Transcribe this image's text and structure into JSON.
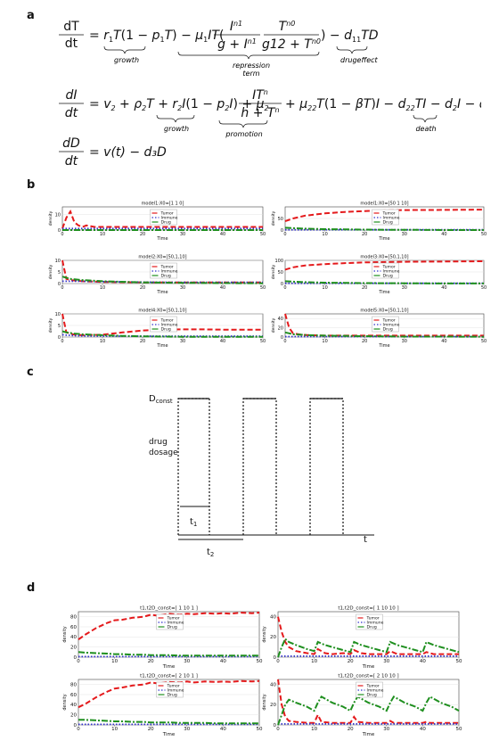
{
  "panels": {
    "a": "a",
    "b": "b",
    "c": "c",
    "d": "d"
  },
  "equations": {
    "eq1_lhs": "dT/dt",
    "eq1_parts": [
      "= r",
      "T(1 − p",
      "T) − μ",
      "IT(",
      "I",
      "g + I",
      "T",
      "g12 + T",
      ") − d",
      "TD"
    ],
    "eq1_labels": {
      "growth": "growth",
      "repression": "repression",
      "term": "term",
      "drugeffect": "drugeffect"
    },
    "eq2_lhs": "dI/dt",
    "eq2_labels": {
      "growth": "growth",
      "promotion": "promotion",
      "death": "death"
    },
    "eq3_lhs": "dD/dt",
    "eq3_rhs": "= v(t) − d₃D"
  },
  "legend": {
    "tumor": "Tumor",
    "immune": "Immune",
    "drug": "Drug"
  },
  "axis": {
    "xlabel": "Time",
    "ylabel": "density"
  },
  "colors": {
    "tumor": "#e41a1c",
    "immune": "#3333cc",
    "drug": "#1f8f1f"
  },
  "dosage": {
    "dconst": "D",
    "dconst_sub": "const",
    "ylabel1": "drug",
    "ylabel2": "dosage",
    "t1": "t",
    "t1_sub": "1",
    "t2": "t",
    "t2_sub": "2",
    "t": "t"
  },
  "chart_data": [
    {
      "type": "line",
      "title": "model1:X0=[1 1 0]",
      "xlim": [
        0,
        50
      ],
      "ylim": [
        0,
        15
      ],
      "yticks": [
        0,
        10
      ],
      "xticks": [
        0,
        10,
        20,
        30,
        40,
        50
      ],
      "x": [
        0,
        1,
        2,
        3,
        4,
        5,
        6,
        8,
        10,
        15,
        20,
        30,
        40,
        50
      ],
      "series": [
        {
          "name": "Tumor",
          "values": [
            1,
            8,
            12,
            5,
            3,
            2,
            3,
            2,
            2,
            2,
            2,
            2,
            2,
            2
          ]
        },
        {
          "name": "Immune",
          "values": [
            1,
            1,
            1,
            1,
            1,
            1,
            1,
            1,
            1,
            1,
            1,
            1,
            1,
            1
          ]
        },
        {
          "name": "Drug",
          "values": [
            0,
            0,
            0,
            0,
            0,
            0,
            0,
            0,
            0,
            0,
            0,
            0,
            0,
            0
          ]
        }
      ]
    },
    {
      "type": "line",
      "title": "model1:X0=[50 1 10]",
      "xlim": [
        0,
        50
      ],
      "ylim": [
        0,
        100
      ],
      "yticks": [
        0,
        50
      ],
      "xticks": [
        0,
        10,
        20,
        30,
        40,
        50
      ],
      "x": [
        0,
        2,
        5,
        10,
        15,
        20,
        25,
        30,
        40,
        50
      ],
      "series": [
        {
          "name": "Tumor",
          "values": [
            38,
            50,
            62,
            72,
            78,
            82,
            85,
            86,
            87,
            88
          ]
        },
        {
          "name": "Immune",
          "values": [
            1,
            1,
            1,
            1,
            1,
            1,
            1,
            1,
            1,
            1
          ]
        },
        {
          "name": "Drug",
          "values": [
            10,
            8,
            6,
            4,
            3,
            2,
            1,
            1,
            0,
            0
          ]
        }
      ]
    },
    {
      "type": "line",
      "title": "model2:X0=[50,1,10]",
      "xlim": [
        0,
        50
      ],
      "ylim": [
        0,
        10
      ],
      "yticks": [
        0,
        5,
        10
      ],
      "xticks": [
        0,
        10,
        20,
        30,
        40,
        50
      ],
      "x": [
        0,
        1,
        2,
        5,
        10,
        20,
        30,
        40,
        50
      ],
      "series": [
        {
          "name": "Tumor",
          "values": [
            10,
            2,
            1.5,
            1,
            0.7,
            0.5,
            0.5,
            0.5,
            0.5
          ]
        },
        {
          "name": "Immune",
          "values": [
            1,
            1,
            1,
            1,
            0.8,
            0.6,
            0.5,
            0.5,
            0.5
          ]
        },
        {
          "name": "Drug",
          "values": [
            3,
            2.5,
            2,
            1.5,
            1,
            0.5,
            0.3,
            0.2,
            0.1
          ]
        }
      ]
    },
    {
      "type": "line",
      "title": "model3:X0=[50,1,10]",
      "xlim": [
        0,
        50
      ],
      "ylim": [
        0,
        100
      ],
      "yticks": [
        0,
        50,
        100
      ],
      "xticks": [
        0,
        10,
        20,
        30,
        40,
        50
      ],
      "x": [
        0,
        2,
        5,
        10,
        15,
        20,
        30,
        40,
        50
      ],
      "series": [
        {
          "name": "Tumor",
          "values": [
            60,
            70,
            78,
            84,
            88,
            91,
            94,
            95,
            96
          ]
        },
        {
          "name": "Immune",
          "values": [
            1,
            1,
            1,
            1,
            1,
            1,
            1,
            1,
            1
          ]
        },
        {
          "name": "Drug",
          "values": [
            10,
            8,
            6,
            4,
            3,
            2,
            1,
            0.5,
            0.2
          ]
        }
      ]
    },
    {
      "type": "line",
      "title": "model4:X0=[50,1,10]",
      "xlim": [
        0,
        50
      ],
      "ylim": [
        0,
        10
      ],
      "yticks": [
        0,
        5,
        10
      ],
      "xticks": [
        0,
        10,
        20,
        30,
        40,
        50
      ],
      "x": [
        0,
        1,
        3,
        5,
        10,
        15,
        20,
        25,
        30,
        35,
        40,
        50
      ],
      "series": [
        {
          "name": "Tumor",
          "values": [
            10,
            2,
            1,
            0.8,
            1,
            2,
            2.8,
            3.2,
            3.3,
            3.3,
            3.2,
            3.2
          ]
        },
        {
          "name": "Immune",
          "values": [
            1,
            0.8,
            0.6,
            0.5,
            0.4,
            0.4,
            0.4,
            0.4,
            0.4,
            0.4,
            0.4,
            0.4
          ]
        },
        {
          "name": "Drug",
          "values": [
            2.5,
            2,
            1.5,
            1.2,
            0.8,
            0.5,
            0.3,
            0.2,
            0.1,
            0.1,
            0.1,
            0.1
          ]
        }
      ]
    },
    {
      "type": "line",
      "title": "model5:X0=[50,1,10]",
      "xlim": [
        0,
        50
      ],
      "ylim": [
        0,
        50
      ],
      "yticks": [
        0,
        20,
        40
      ],
      "xticks": [
        0,
        10,
        20,
        30,
        40,
        50
      ],
      "x": [
        0,
        1,
        2,
        4,
        6,
        10,
        20,
        30,
        40,
        50
      ],
      "series": [
        {
          "name": "Tumor",
          "values": [
            50,
            20,
            8,
            5,
            4,
            3,
            3,
            3,
            3,
            3
          ]
        },
        {
          "name": "Immune",
          "values": [
            1,
            1,
            1,
            1,
            1,
            1,
            1,
            1,
            1,
            1
          ]
        },
        {
          "name": "Drug",
          "values": [
            10,
            8,
            6,
            5,
            4,
            3,
            2,
            1,
            1,
            0.5
          ]
        }
      ]
    },
    {
      "type": "line",
      "title": "t1,t2D_const=[ 1 10 1 ]",
      "xlim": [
        0,
        50
      ],
      "ylim": [
        0,
        90
      ],
      "yticks": [
        0,
        20,
        40,
        60,
        80
      ],
      "xticks": [
        0,
        10,
        20,
        30,
        40,
        50
      ],
      "x": [
        0,
        2,
        5,
        8,
        10,
        12,
        15,
        18,
        20,
        22,
        25,
        28,
        30,
        32,
        35,
        38,
        40,
        42,
        45,
        48,
        50
      ],
      "series": [
        {
          "name": "Tumor",
          "values": [
            35,
            45,
            58,
            68,
            73,
            74,
            78,
            80,
            84,
            82,
            86,
            84,
            86,
            85,
            87,
            86,
            87,
            86,
            88,
            87,
            88
          ]
        },
        {
          "name": "Immune",
          "values": [
            1,
            1,
            1,
            1,
            1,
            1,
            1,
            1,
            1,
            1,
            1,
            1,
            1,
            1,
            1,
            1,
            1,
            1,
            1,
            1,
            1
          ]
        },
        {
          "name": "Drug",
          "values": [
            10,
            9,
            8,
            7,
            6,
            6,
            5,
            5,
            4,
            4,
            4,
            3,
            3,
            3,
            3,
            3,
            3,
            3,
            3,
            3,
            3
          ]
        }
      ]
    },
    {
      "type": "line",
      "title": "t1,t2D_const=[ 1 10 10 ]",
      "xlim": [
        0,
        50
      ],
      "ylim": [
        0,
        45
      ],
      "yticks": [
        0,
        20,
        40
      ],
      "xticks": [
        0,
        10,
        20,
        30,
        40,
        50
      ],
      "x": [
        0,
        1,
        2,
        3,
        5,
        8,
        10,
        11,
        13,
        15,
        18,
        20,
        21,
        23,
        25,
        28,
        30,
        31,
        33,
        35,
        38,
        40,
        41,
        43,
        45,
        48,
        50
      ],
      "series": [
        {
          "name": "Tumor",
          "values": [
            40,
            25,
            15,
            10,
            6,
            4,
            3,
            8,
            4,
            3,
            4,
            3,
            7,
            4,
            3,
            3,
            3,
            6,
            3,
            3,
            3,
            3,
            5,
            3,
            3,
            3,
            3
          ]
        },
        {
          "name": "Immune",
          "values": [
            1,
            1,
            1,
            1,
            1,
            1,
            1,
            1,
            1,
            1,
            1,
            1,
            1,
            1,
            1,
            1,
            1,
            1,
            1,
            1,
            1,
            1,
            1,
            1,
            1,
            1,
            1
          ]
        },
        {
          "name": "Drug",
          "values": [
            0,
            10,
            18,
            15,
            12,
            8,
            6,
            15,
            12,
            10,
            7,
            5,
            15,
            12,
            10,
            7,
            5,
            15,
            12,
            10,
            7,
            5,
            15,
            12,
            10,
            7,
            5
          ]
        }
      ]
    },
    {
      "type": "line",
      "title": "t1,t2D_const=[ 2 10 1 ]",
      "xlim": [
        0,
        50
      ],
      "ylim": [
        0,
        90
      ],
      "yticks": [
        0,
        20,
        40,
        60,
        80
      ],
      "xticks": [
        0,
        10,
        20,
        30,
        40,
        50
      ],
      "x": [
        0,
        2,
        5,
        8,
        10,
        12,
        15,
        18,
        20,
        22,
        25,
        28,
        30,
        32,
        35,
        38,
        40,
        42,
        45,
        48,
        50
      ],
      "series": [
        {
          "name": "Tumor",
          "values": [
            35,
            42,
            55,
            66,
            72,
            74,
            78,
            80,
            84,
            82,
            85,
            84,
            86,
            84,
            86,
            85,
            86,
            85,
            87,
            86,
            87
          ]
        },
        {
          "name": "Immune",
          "values": [
            1,
            1,
            1,
            1,
            1,
            1,
            1,
            1,
            1,
            1,
            1,
            1,
            1,
            1,
            1,
            1,
            1,
            1,
            1,
            1,
            1
          ]
        },
        {
          "name": "Drug",
          "values": [
            10,
            10,
            9,
            8,
            7,
            7,
            6,
            6,
            5,
            5,
            5,
            4,
            4,
            4,
            4,
            3,
            3,
            3,
            3,
            3,
            3
          ]
        }
      ]
    },
    {
      "type": "line",
      "title": "t1,t2D_const=[ 2 10 10 ]",
      "xlim": [
        0,
        50
      ],
      "ylim": [
        0,
        45
      ],
      "yticks": [
        0,
        20,
        40
      ],
      "xticks": [
        0,
        10,
        20,
        30,
        40,
        50
      ],
      "x": [
        0,
        1,
        2,
        3,
        5,
        8,
        10,
        11,
        12,
        15,
        18,
        20,
        21,
        22,
        25,
        28,
        30,
        31,
        32,
        35,
        38,
        40,
        41,
        42,
        45,
        48,
        50
      ],
      "series": [
        {
          "name": "Tumor",
          "values": [
            45,
            20,
            8,
            4,
            3,
            2,
            2,
            10,
            3,
            2,
            2,
            2,
            8,
            3,
            2,
            2,
            2,
            4,
            2,
            2,
            2,
            2,
            3,
            2,
            2,
            2,
            2
          ]
        },
        {
          "name": "Immune",
          "values": [
            1,
            1,
            1,
            1,
            1,
            1,
            1,
            1,
            1,
            1,
            1,
            1,
            1,
            1,
            1,
            1,
            1,
            1,
            1,
            1,
            1,
            1,
            1,
            1,
            1,
            1,
            1
          ]
        },
        {
          "name": "Drug",
          "values": [
            0,
            10,
            20,
            25,
            22,
            18,
            14,
            22,
            28,
            22,
            18,
            14,
            22,
            28,
            22,
            18,
            14,
            22,
            28,
            22,
            18,
            14,
            22,
            28,
            22,
            18,
            14
          ]
        }
      ]
    }
  ]
}
